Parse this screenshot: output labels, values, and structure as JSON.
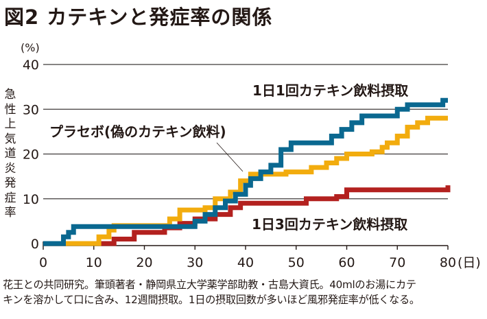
{
  "title": "図2 カテキンと発症率の関係",
  "caption": {
    "line1": "花王との共同研究。筆頭著者・静岡県立大学薬学部助教・古島大資氏。40mlのお湯にカテ",
    "line2": "キンを溶かして口に含み、12週間摂取。1日の摂取回数が多いほど風邪発症率が低くなる。"
  },
  "chart_data": {
    "type": "line",
    "step": true,
    "title": "図2 カテキンと発症率の関係",
    "xlabel": "(日)",
    "ylabel": "急性上気道炎発症率",
    "yunit": "(%)",
    "xlim": [
      0,
      80
    ],
    "ylim": [
      0,
      40
    ],
    "xticks": [
      0,
      10,
      20,
      30,
      40,
      50,
      60,
      70,
      80
    ],
    "yticks": [
      0,
      10,
      20,
      30,
      40
    ],
    "grid": "horizontal",
    "colors": {
      "once": "#0a6890",
      "placebo": "#f2ac0e",
      "thrice": "#b3211f"
    },
    "series": [
      {
        "name": "1日1回カテキン飲料摂取",
        "key": "once",
        "points": [
          [
            0,
            0
          ],
          [
            4,
            1.5
          ],
          [
            5,
            2.5
          ],
          [
            6,
            3.8
          ],
          [
            30,
            5
          ],
          [
            32,
            6.5
          ],
          [
            34,
            8
          ],
          [
            36,
            9.5
          ],
          [
            38,
            11
          ],
          [
            40,
            13
          ],
          [
            41,
            14.5
          ],
          [
            43,
            16
          ],
          [
            45,
            17.5
          ],
          [
            47,
            21
          ],
          [
            49,
            22.5
          ],
          [
            57,
            24
          ],
          [
            59,
            25.5
          ],
          [
            61,
            27
          ],
          [
            63,
            28.5
          ],
          [
            70,
            30
          ],
          [
            72,
            31
          ],
          [
            79,
            32
          ],
          [
            80,
            32
          ]
        ]
      },
      {
        "name": "プラセボ(偽のカテキン飲料)",
        "key": "placebo",
        "points": [
          [
            0,
            0
          ],
          [
            11,
            1.5
          ],
          [
            13,
            3
          ],
          [
            14,
            4
          ],
          [
            25,
            5.5
          ],
          [
            27,
            7.5
          ],
          [
            32,
            8
          ],
          [
            34,
            10
          ],
          [
            37,
            11.5
          ],
          [
            39,
            14
          ],
          [
            41,
            15.5
          ],
          [
            48,
            16
          ],
          [
            53,
            17
          ],
          [
            56,
            18
          ],
          [
            58,
            19
          ],
          [
            60,
            20
          ],
          [
            65,
            20.5
          ],
          [
            67,
            21.5
          ],
          [
            68,
            22.5
          ],
          [
            70,
            24
          ],
          [
            72,
            26
          ],
          [
            74,
            27
          ],
          [
            76,
            28
          ],
          [
            80,
            28
          ]
        ]
      },
      {
        "name": "1日3回カテキン飲料摂取",
        "key": "thrice",
        "points": [
          [
            0,
            0
          ],
          [
            14,
            1
          ],
          [
            18,
            2.5
          ],
          [
            24,
            3.5
          ],
          [
            27,
            4.5
          ],
          [
            30,
            5.5
          ],
          [
            34,
            6.5
          ],
          [
            37,
            8
          ],
          [
            39,
            9
          ],
          [
            52,
            10
          ],
          [
            58,
            10.5
          ],
          [
            60,
            12
          ],
          [
            80,
            13
          ]
        ]
      }
    ],
    "annotations": [
      {
        "text": "1日1回カテキン飲料摂取",
        "series": "once",
        "placement": "upper-right"
      },
      {
        "text": "プラセボ(偽のカテキン飲料)",
        "series": "placebo",
        "placement": "upper-left",
        "leader_to": [
          40,
          15.5
        ]
      },
      {
        "text": "1日3回カテキン飲料摂取",
        "series": "thrice",
        "placement": "lower-right"
      }
    ]
  }
}
